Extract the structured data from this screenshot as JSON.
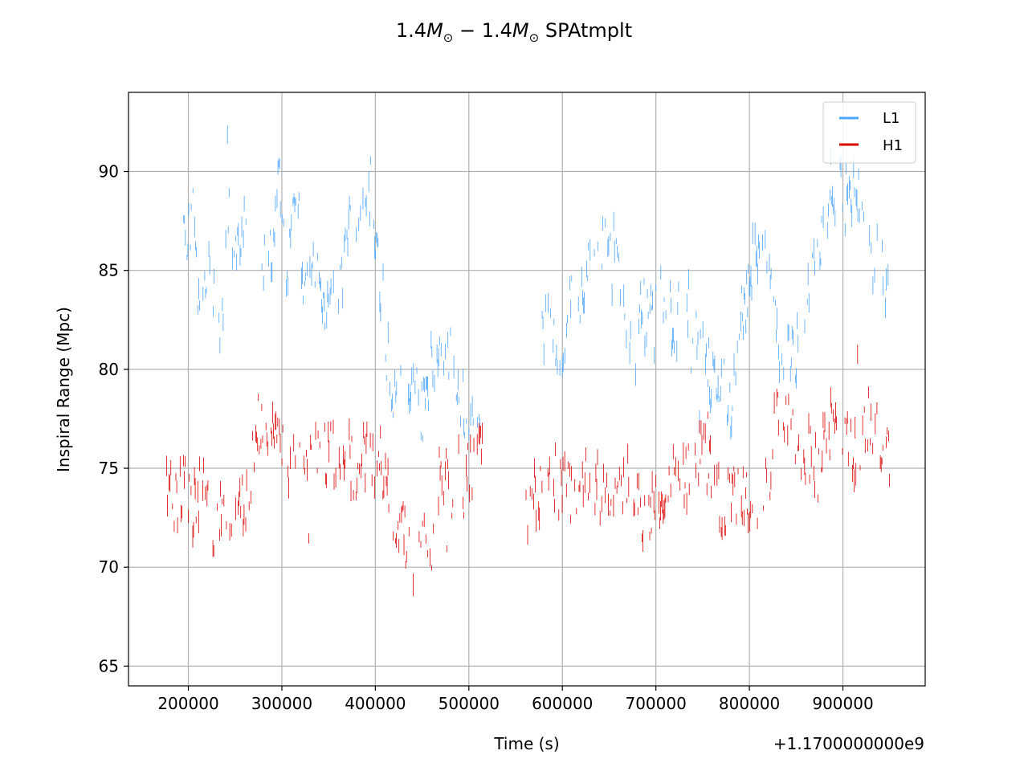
{
  "chart_data": {
    "type": "scatter",
    "title_parts": {
      "a": "1.4",
      "b": "M",
      "c": "⊙",
      "d": " − 1.4",
      "e": "M",
      "f": "⊙",
      "g": " SPAtmplt"
    },
    "xlabel": "Time (s)",
    "ylabel": "Inspiral Range (Mpc)",
    "x_offset_label": "+1.1700000000e9",
    "x_offset": 1170000000,
    "xlim": [
      136000,
      988000
    ],
    "ylim": [
      64,
      94
    ],
    "x_ticks": [
      200000,
      300000,
      400000,
      500000,
      600000,
      700000,
      800000,
      900000
    ],
    "x_tick_labels": [
      "200000",
      "300000",
      "400000",
      "500000",
      "600000",
      "700000",
      "800000",
      "900000"
    ],
    "y_ticks": [
      65,
      70,
      75,
      80,
      85,
      90
    ],
    "y_tick_labels": [
      "65",
      "70",
      "75",
      "80",
      "85",
      "90"
    ],
    "grid": true,
    "legend_position": "top-right",
    "series": [
      {
        "name": "L1",
        "color": "#4da6ff",
        "x_range": [
          195000,
          950000
        ],
        "gaps": [
          [
            262000,
            278000
          ],
          [
            512000,
            578000
          ]
        ],
        "trend": [
          [
            195000,
            86.0
          ],
          [
            205000,
            87.5
          ],
          [
            212000,
            83.5
          ],
          [
            220000,
            85.5
          ],
          [
            228000,
            83.0
          ],
          [
            235000,
            81.0
          ],
          [
            242000,
            88.0
          ],
          [
            250000,
            86.0
          ],
          [
            258000,
            87.0
          ],
          [
            280000,
            85.0
          ],
          [
            290000,
            86.5
          ],
          [
            298000,
            90.0
          ],
          [
            305000,
            85.0
          ],
          [
            315000,
            88.0
          ],
          [
            325000,
            84.0
          ],
          [
            335000,
            85.5
          ],
          [
            345000,
            83.0
          ],
          [
            355000,
            84.5
          ],
          [
            365000,
            84.5
          ],
          [
            375000,
            88.0
          ],
          [
            385000,
            87.5
          ],
          [
            395000,
            89.0
          ],
          [
            402000,
            86.0
          ],
          [
            410000,
            82.0
          ],
          [
            420000,
            78.5
          ],
          [
            430000,
            79.0
          ],
          [
            440000,
            80.0
          ],
          [
            450000,
            77.5
          ],
          [
            460000,
            80.0
          ],
          [
            470000,
            81.5
          ],
          [
            480000,
            81.0
          ],
          [
            490000,
            79.0
          ],
          [
            500000,
            77.5
          ],
          [
            510000,
            78.0
          ],
          [
            580000,
            82.0
          ],
          [
            590000,
            81.5
          ],
          [
            600000,
            80.0
          ],
          [
            610000,
            84.0
          ],
          [
            620000,
            83.0
          ],
          [
            630000,
            86.0
          ],
          [
            640000,
            85.5
          ],
          [
            650000,
            87.0
          ],
          [
            660000,
            86.0
          ],
          [
            670000,
            82.0
          ],
          [
            680000,
            84.0
          ],
          [
            690000,
            82.5
          ],
          [
            700000,
            83.0
          ],
          [
            710000,
            84.5
          ],
          [
            720000,
            81.0
          ],
          [
            730000,
            85.0
          ],
          [
            740000,
            81.5
          ],
          [
            750000,
            80.5
          ],
          [
            760000,
            79.5
          ],
          [
            770000,
            80.0
          ],
          [
            780000,
            78.0
          ],
          [
            790000,
            82.0
          ],
          [
            800000,
            85.0
          ],
          [
            810000,
            86.0
          ],
          [
            820000,
            85.5
          ],
          [
            830000,
            81.0
          ],
          [
            840000,
            80.5
          ],
          [
            850000,
            81.0
          ],
          [
            860000,
            82.5
          ],
          [
            870000,
            86.0
          ],
          [
            880000,
            86.5
          ],
          [
            890000,
            88.0
          ],
          [
            900000,
            89.5
          ],
          [
            910000,
            89.0
          ],
          [
            920000,
            88.5
          ],
          [
            930000,
            86.0
          ],
          [
            940000,
            85.0
          ],
          [
            950000,
            84.0
          ]
        ]
      },
      {
        "name": "H1",
        "color": "#dd0000",
        "x_range": [
          175000,
          950000
        ],
        "gaps": [
          [
            515000,
            560000
          ]
        ],
        "trend": [
          [
            175000,
            74.0
          ],
          [
            185000,
            73.5
          ],
          [
            195000,
            74.0
          ],
          [
            205000,
            73.0
          ],
          [
            215000,
            74.0
          ],
          [
            225000,
            72.0
          ],
          [
            235000,
            73.0
          ],
          [
            245000,
            72.5
          ],
          [
            255000,
            73.0
          ],
          [
            265000,
            73.5
          ],
          [
            270000,
            76.5
          ],
          [
            280000,
            77.5
          ],
          [
            290000,
            77.0
          ],
          [
            300000,
            75.5
          ],
          [
            310000,
            75.5
          ],
          [
            320000,
            75.0
          ],
          [
            330000,
            75.5
          ],
          [
            340000,
            76.0
          ],
          [
            350000,
            75.5
          ],
          [
            360000,
            76.0
          ],
          [
            370000,
            75.5
          ],
          [
            380000,
            75.0
          ],
          [
            390000,
            75.5
          ],
          [
            400000,
            75.5
          ],
          [
            410000,
            74.0
          ],
          [
            420000,
            73.0
          ],
          [
            430000,
            72.0
          ],
          [
            440000,
            70.5
          ],
          [
            450000,
            72.0
          ],
          [
            460000,
            70.5
          ],
          [
            470000,
            75.5
          ],
          [
            480000,
            74.0
          ],
          [
            490000,
            73.5
          ],
          [
            500000,
            75.0
          ],
          [
            510000,
            75.5
          ],
          [
            560000,
            72.5
          ],
          [
            570000,
            73.5
          ],
          [
            580000,
            74.0
          ],
          [
            590000,
            74.5
          ],
          [
            600000,
            74.0
          ],
          [
            610000,
            73.5
          ],
          [
            620000,
            74.5
          ],
          [
            630000,
            75.0
          ],
          [
            640000,
            74.0
          ],
          [
            650000,
            73.5
          ],
          [
            660000,
            73.0
          ],
          [
            670000,
            74.5
          ],
          [
            680000,
            73.5
          ],
          [
            690000,
            72.5
          ],
          [
            700000,
            74.0
          ],
          [
            710000,
            73.5
          ],
          [
            720000,
            75.5
          ],
          [
            730000,
            74.5
          ],
          [
            740000,
            75.5
          ],
          [
            750000,
            76.0
          ],
          [
            760000,
            74.5
          ],
          [
            770000,
            73.0
          ],
          [
            780000,
            73.5
          ],
          [
            790000,
            74.0
          ],
          [
            800000,
            73.0
          ],
          [
            810000,
            71.5
          ],
          [
            820000,
            74.5
          ],
          [
            830000,
            77.5
          ],
          [
            840000,
            77.0
          ],
          [
            850000,
            76.5
          ],
          [
            860000,
            76.0
          ],
          [
            870000,
            75.5
          ],
          [
            880000,
            76.5
          ],
          [
            890000,
            76.5
          ],
          [
            900000,
            77.0
          ],
          [
            910000,
            76.0
          ],
          [
            920000,
            76.5
          ],
          [
            930000,
            76.5
          ],
          [
            940000,
            76.5
          ],
          [
            950000,
            75.5
          ]
        ]
      }
    ]
  }
}
